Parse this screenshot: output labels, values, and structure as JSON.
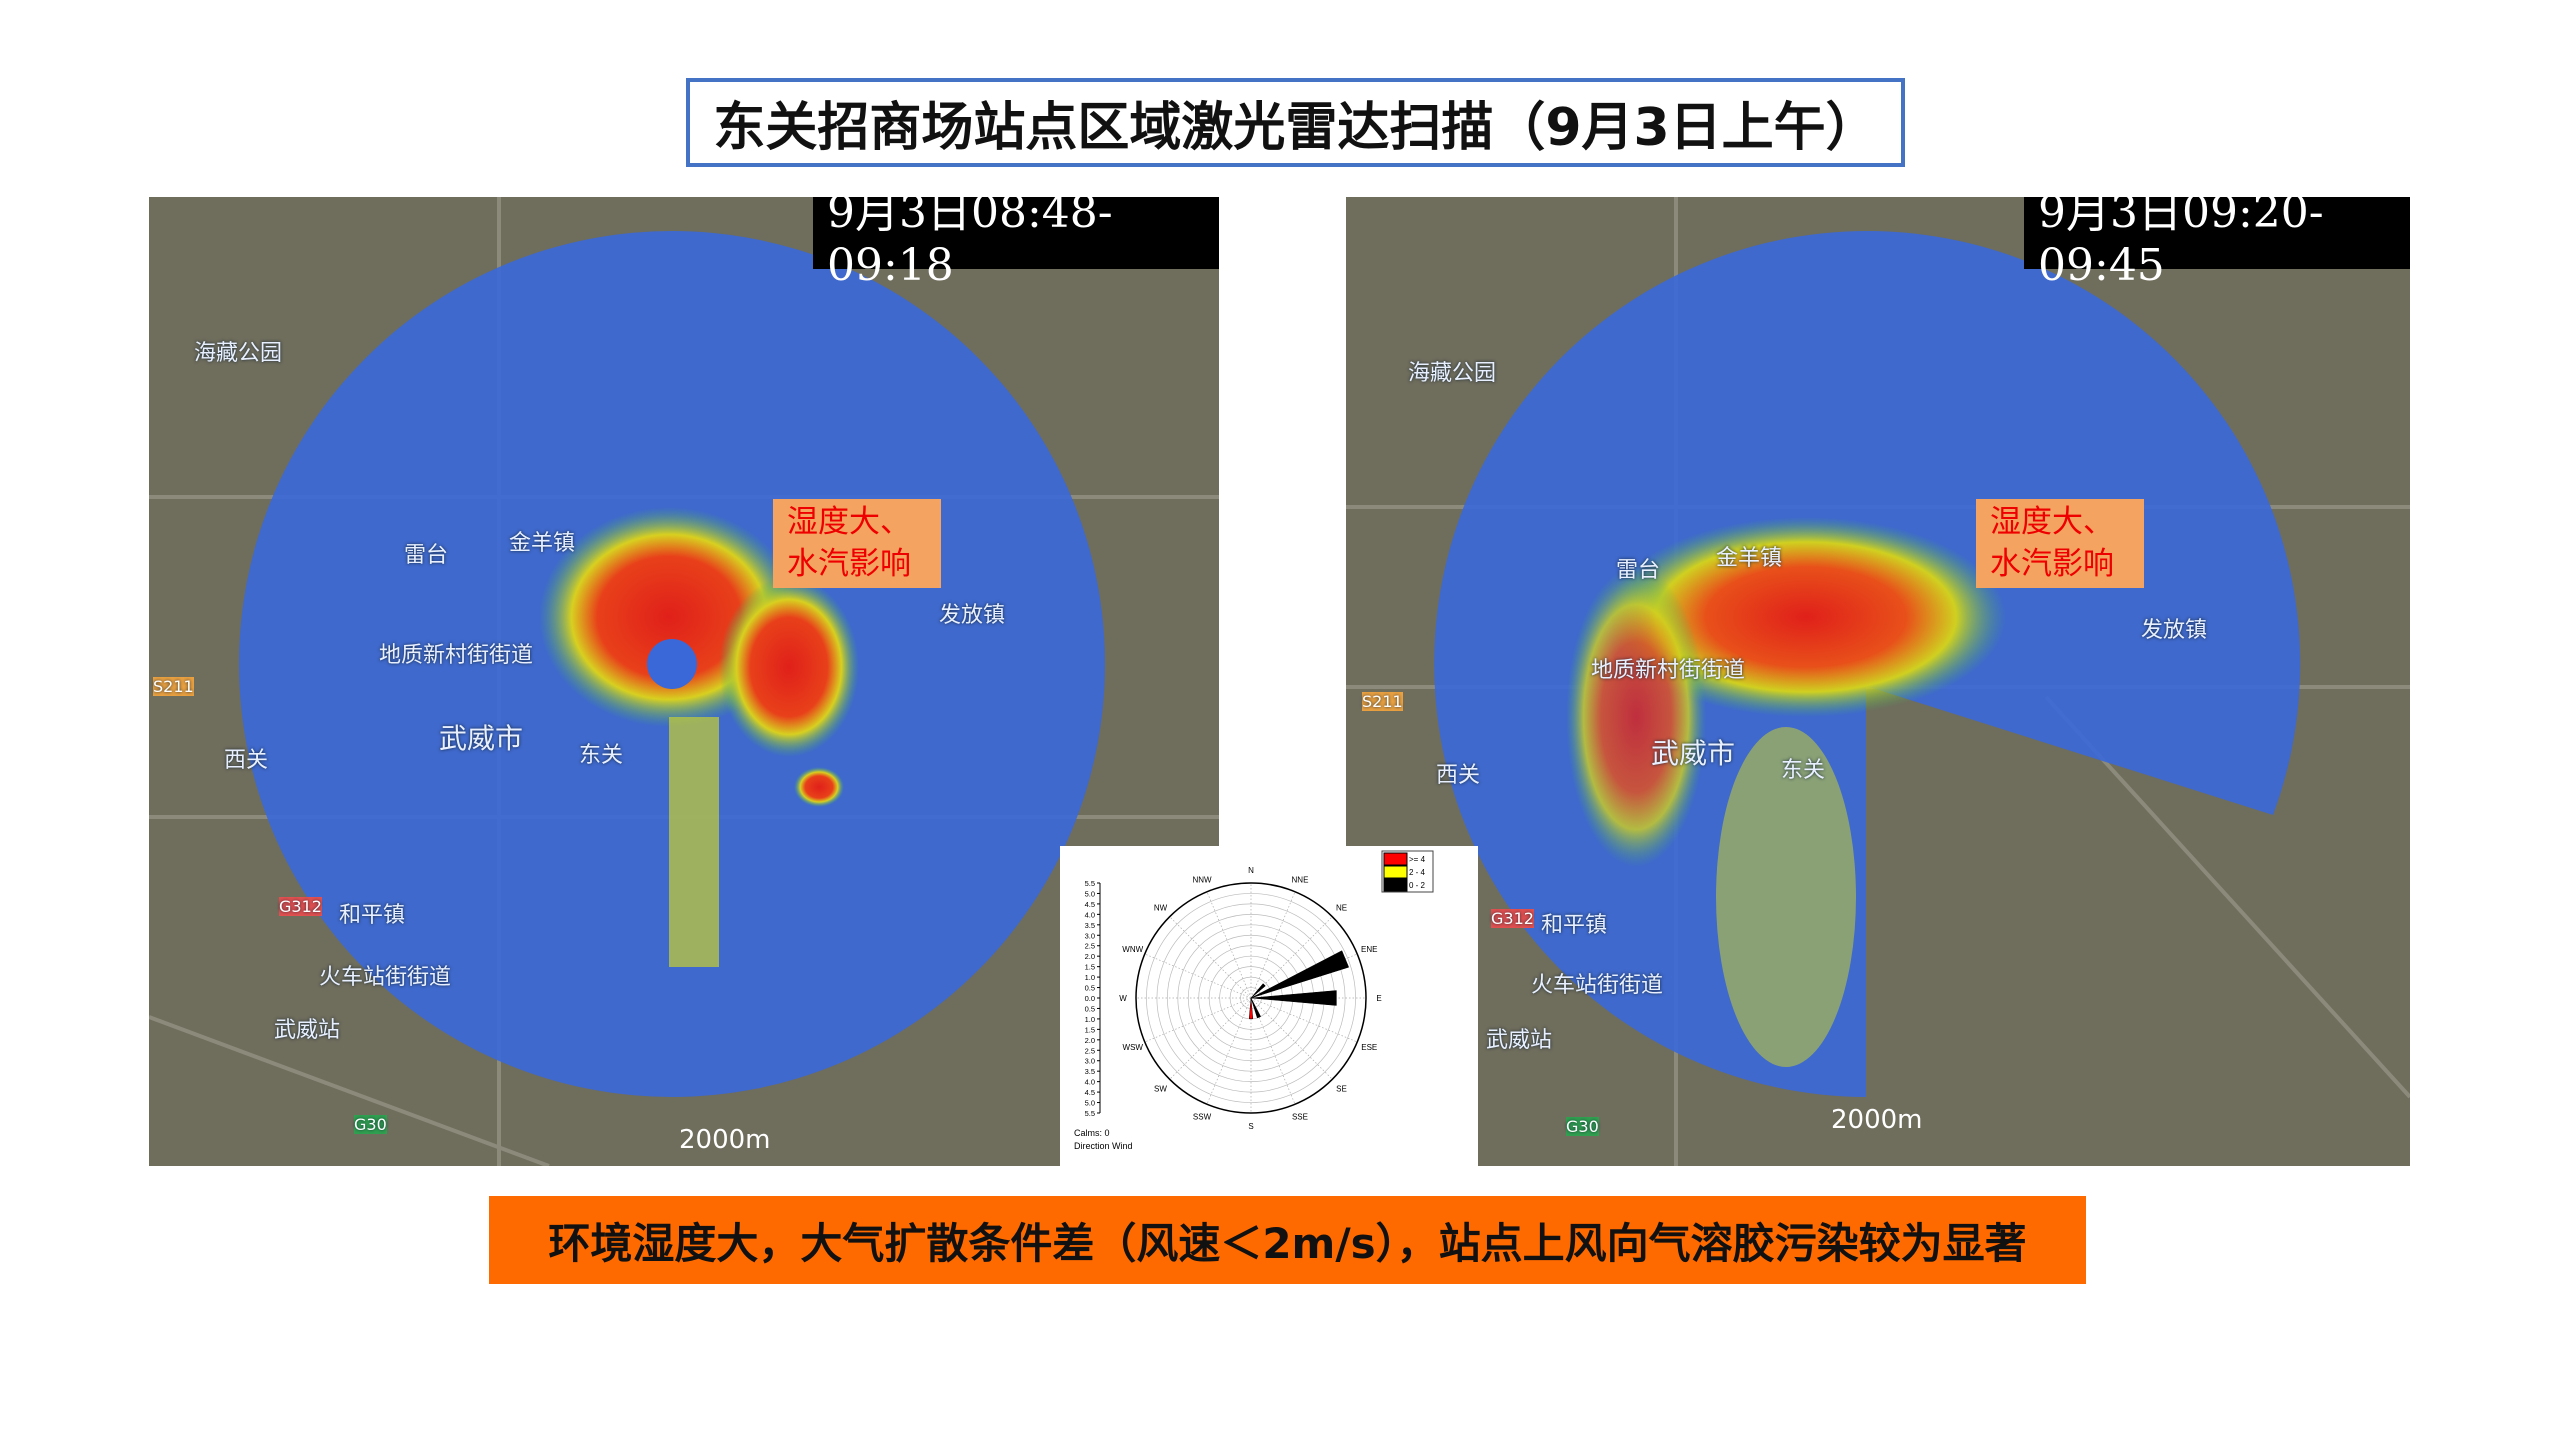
{
  "title": "东关招商场站点区域激光雷达扫描（9月3日上午）",
  "maps": [
    {
      "timestamp": "9月3日08:48-09:18",
      "note_line1": "湿度大、",
      "note_line2": "水汽影响",
      "scale": "2000m",
      "places": [
        "海藏公园",
        "雷台",
        "金羊镇",
        "地质新村街街道",
        "武威市",
        "东关",
        "西关",
        "和平镇",
        "火车站街街道",
        "武威站",
        "发放镇",
        "S211",
        "G312",
        "G30"
      ]
    },
    {
      "timestamp": "9月3日09:20-09:45",
      "note_line1": "湿度大、",
      "note_line2": "水汽影响",
      "scale": "2000m",
      "places": [
        "海藏公园",
        "雷台",
        "金羊镇",
        "地质新村街街道",
        "武威市",
        "东关",
        "西关",
        "和平镇",
        "火车站街街道",
        "武威站",
        "发放镇",
        "S211",
        "G312",
        "G30"
      ]
    }
  ],
  "wind_rose": {
    "directions": [
      "N",
      "NNE",
      "NE",
      "ENE",
      "E",
      "ESE",
      "SE",
      "SSE",
      "S",
      "SSW",
      "SW",
      "WSW",
      "W",
      "WNW",
      "NW",
      "NNW"
    ],
    "axis_ticks": [
      "5.5",
      "5.0",
      "4.5",
      "4.0",
      "3.5",
      "3.0",
      "2.5",
      "2.0",
      "1.5",
      "1.0",
      "0.5",
      "0.0",
      "0.5",
      "1.0",
      "1.5",
      "2.0",
      "2.5",
      "3.0",
      "3.5",
      "4.0",
      "4.5",
      "5.0",
      "5.5"
    ],
    "rmax": 5.5,
    "legend": [
      {
        "label": ">= 4",
        "color": "#ff0000"
      },
      {
        "label": "2 - 4",
        "color": "#ffff00"
      },
      {
        "label": "0 - 2",
        "color": "#000000"
      }
    ],
    "bars": [
      {
        "dir": "NE",
        "value": 0.9,
        "color": "#000000"
      },
      {
        "dir": "ENE",
        "value": 4.9,
        "color": "#000000"
      },
      {
        "dir": "E",
        "value": 4.1,
        "color": "#000000"
      },
      {
        "dir": "SSE",
        "value": 1.0,
        "color": "#000000"
      },
      {
        "dir": "S",
        "value": 1.0,
        "color": "#ff0000"
      }
    ],
    "calms": "Calms: 0",
    "caption": "Direction Wind"
  },
  "banner": "环境湿度大，大气扩散条件差（风速＜2m/s），站点上风向气溶胶污染较为显著"
}
